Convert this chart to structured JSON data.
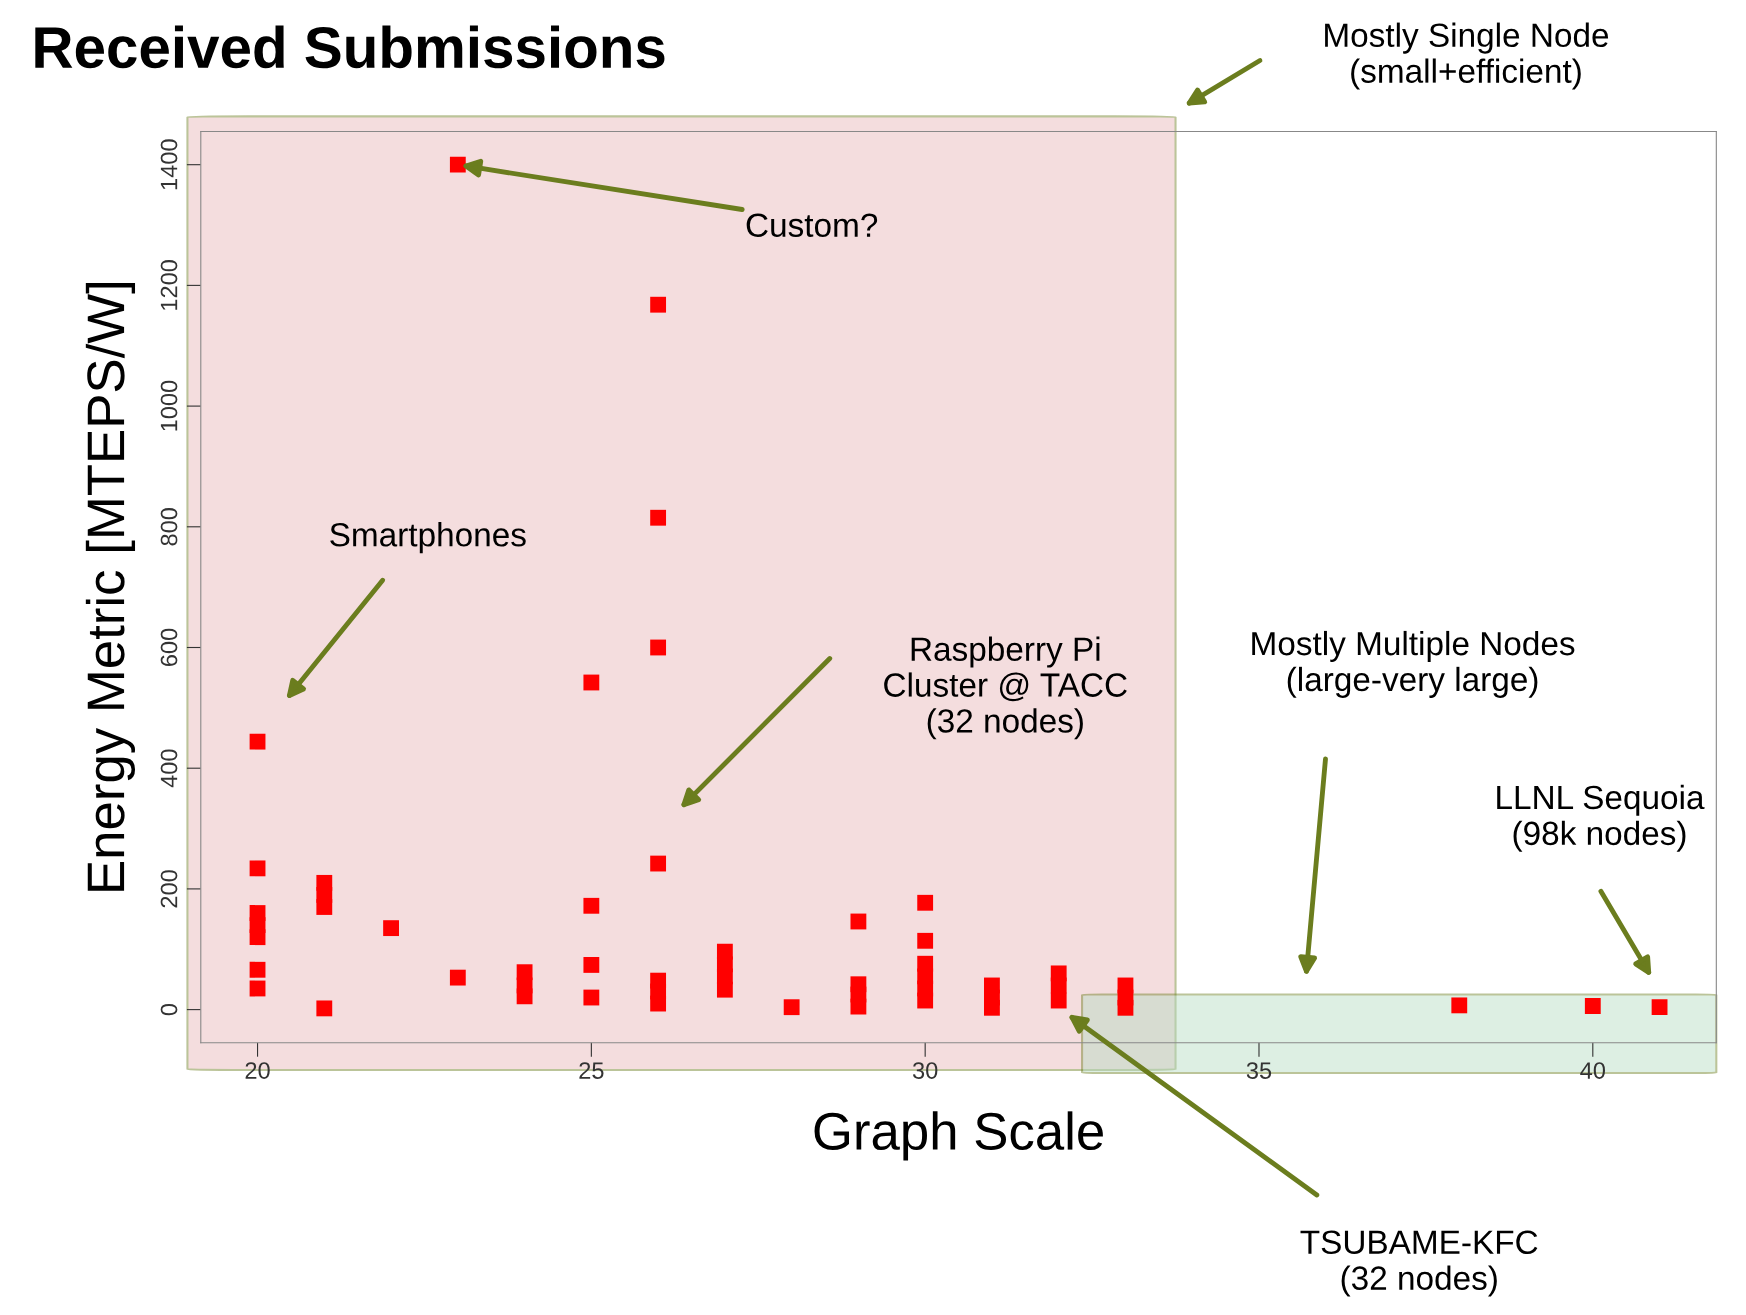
{
  "chart_data": {
    "type": "scatter",
    "title": "Received Submissions",
    "xlabel": "Graph Scale",
    "ylabel": "Energy Metric [MTEPS/W]",
    "series": [
      {
        "color": "#ff0000",
        "x": [
          20,
          20,
          20,
          20,
          20,
          20,
          20,
          21,
          21,
          21,
          21,
          22,
          23,
          23,
          24,
          24,
          24,
          25,
          25,
          25,
          25,
          26,
          26,
          26,
          26,
          26,
          26,
          26,
          27,
          27,
          27,
          27,
          28,
          29,
          29,
          29,
          29,
          30,
          30,
          30,
          30,
          30,
          30,
          31,
          31,
          31,
          32,
          32,
          32,
          33,
          33,
          33,
          38,
          40,
          41
        ],
        "values": [
          444,
          234,
          160,
          140,
          120,
          66,
          35,
          210,
          190,
          170,
          2,
          135,
          1400,
          53,
          62,
          40,
          22,
          542,
          172,
          74,
          20,
          1168,
          815,
          600,
          242,
          48,
          30,
          10,
          96,
          75,
          55,
          33,
          4,
          146,
          42,
          25,
          5,
          177,
          114,
          76,
          55,
          35,
          15,
          40,
          20,
          3,
          60,
          40,
          15,
          40,
          20,
          3,
          7,
          6,
          4
        ]
      }
    ],
    "marker": "square",
    "legend": false,
    "grid": false,
    "xlim": [
      19.15,
      41.85
    ],
    "ylim": [
      -55,
      1455
    ],
    "xticks": [
      20,
      25,
      30,
      35,
      40
    ],
    "yticks": [
      0,
      200,
      400,
      600,
      800,
      1000,
      1200,
      1400
    ],
    "annotations": [
      "Mostly Single Node\n(small+efficient)",
      {
        "text": "Custom?",
        "x": 23,
        "y": 1400
      },
      "Smartphones",
      "Raspberry Pi\nCluster @ TACC\n(32 nodes)",
      "Mostly Multiple Nodes\n(large-very large)",
      "LLNL Sequoia\n(98k nodes)",
      "TSUBAME-KFC\n(32 nodes)"
    ]
  }
}
